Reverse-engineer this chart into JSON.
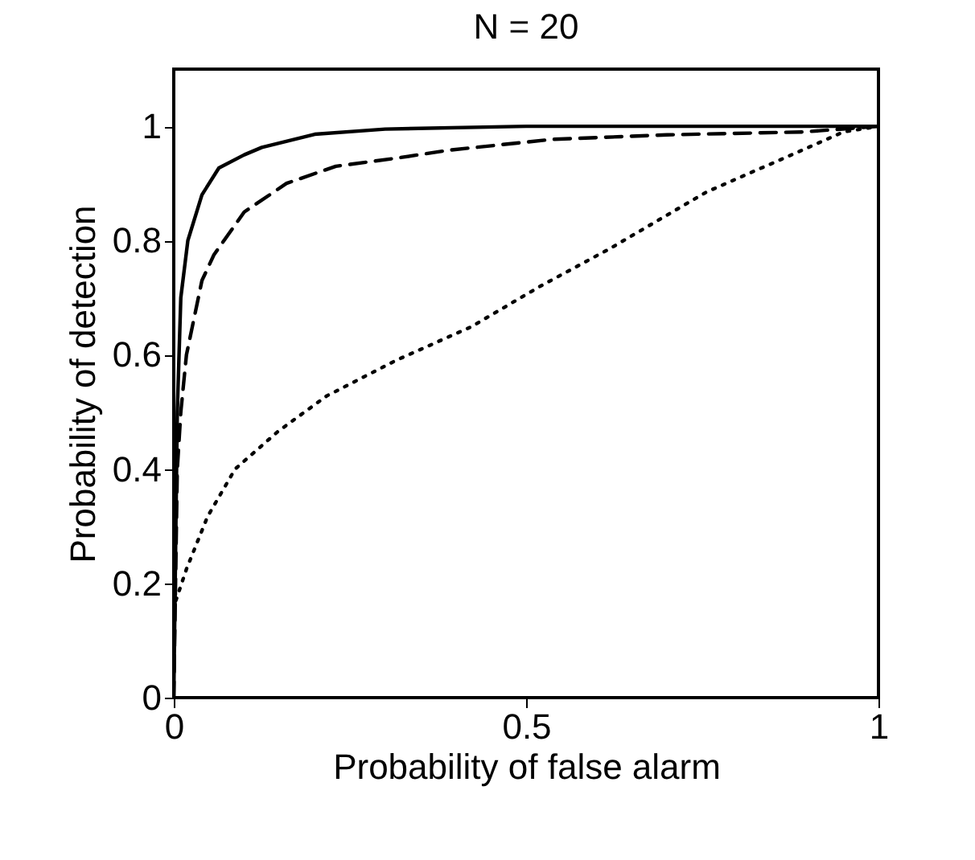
{
  "chart_data": {
    "type": "line",
    "title": "N = 20",
    "xlabel": "Probability of false alarm",
    "ylabel": "Probability of detection",
    "xlim": [
      0,
      1
    ],
    "ylim": [
      0,
      1.1
    ],
    "xticks": [
      0,
      0.5,
      1
    ],
    "yticks": [
      0,
      0.2,
      0.4,
      0.6,
      0.8,
      1
    ],
    "series": [
      {
        "color": "#000000",
        "line_style": "solid",
        "x": [
          0,
          0.005,
          0.01,
          0.02,
          0.04,
          0.064,
          0.1,
          0.125,
          0.2,
          0.3,
          0.5,
          1
        ],
        "values": [
          0,
          0.5,
          0.7,
          0.8,
          0.88,
          0.927,
          0.95,
          0.963,
          0.986,
          0.995,
          1,
          1
        ]
      },
      {
        "color": "#000000",
        "line_style": "dashed",
        "x": [
          0,
          0.005,
          0.01,
          0.018,
          0.04,
          0.057,
          0.1,
          0.16,
          0.23,
          0.315,
          0.39,
          0.536,
          0.7,
          0.893,
          1
        ],
        "values": [
          0,
          0.4,
          0.5,
          0.6,
          0.73,
          0.775,
          0.85,
          0.9,
          0.93,
          0.944,
          0.958,
          0.977,
          0.985,
          0.99,
          1
        ]
      },
      {
        "color": "#000000",
        "line_style": "dotted",
        "x": [
          0.003,
          0.018,
          0.048,
          0.087,
          0.148,
          0.217,
          0.315,
          0.422,
          0.52,
          0.619,
          0.756,
          0.886,
          0.95,
          1
        ],
        "values": [
          0.17,
          0.225,
          0.317,
          0.4,
          0.466,
          0.528,
          0.59,
          0.649,
          0.72,
          0.786,
          0.885,
          0.955,
          0.99,
          1
        ]
      }
    ]
  }
}
